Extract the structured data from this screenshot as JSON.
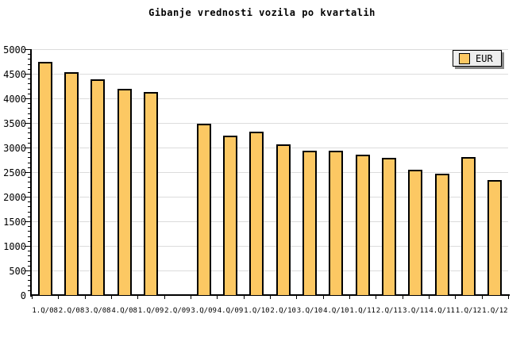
{
  "title": "Gibanje vrednosti vozila po kvartalih",
  "legend": {
    "label": "EUR"
  },
  "colors": {
    "background": "#FFFFFF",
    "bar_fill": "#FCC863",
    "bar_border": "#000000",
    "gridline": "#DCDCDC",
    "axis": "#000000",
    "legend_bg": "#EEEEEE",
    "legend_shadow": "#888888",
    "text": "#000000"
  },
  "chart_data": {
    "type": "bar",
    "title": "Gibanje vrednosti vozila po kvartalih",
    "categories": [
      "1.Q/08",
      "2.Q/08",
      "3.Q/08",
      "4.Q/08",
      "1.Q/09",
      "2.Q/09",
      "3.Q/09",
      "4.Q/09",
      "1.Q/10",
      "2.Q/10",
      "3.Q/10",
      "4.Q/10",
      "1.Q/11",
      "2.Q/11",
      "3.Q/11",
      "4.Q/11",
      "1.Q/12",
      "1.Q/12"
    ],
    "series": [
      {
        "name": "EUR",
        "values": [
          4750,
          4540,
          4390,
          4200,
          4130,
          null,
          3490,
          3250,
          3320,
          3060,
          2930,
          2940,
          2850,
          2790,
          2550,
          2470,
          2800,
          2340
        ]
      }
    ],
    "xlabel": "",
    "ylabel": "",
    "ylim": [
      0,
      5000
    ],
    "y_major_step": 500,
    "y_minor_step": 100,
    "y_tick_labels": [
      "0",
      "500",
      "1000",
      "1500",
      "2000",
      "2500",
      "3000",
      "3500",
      "4000",
      "4500",
      "5000"
    ],
    "grid": "horizontal",
    "legend_position": "top-right",
    "note_missing_category": "2.Q/09"
  }
}
